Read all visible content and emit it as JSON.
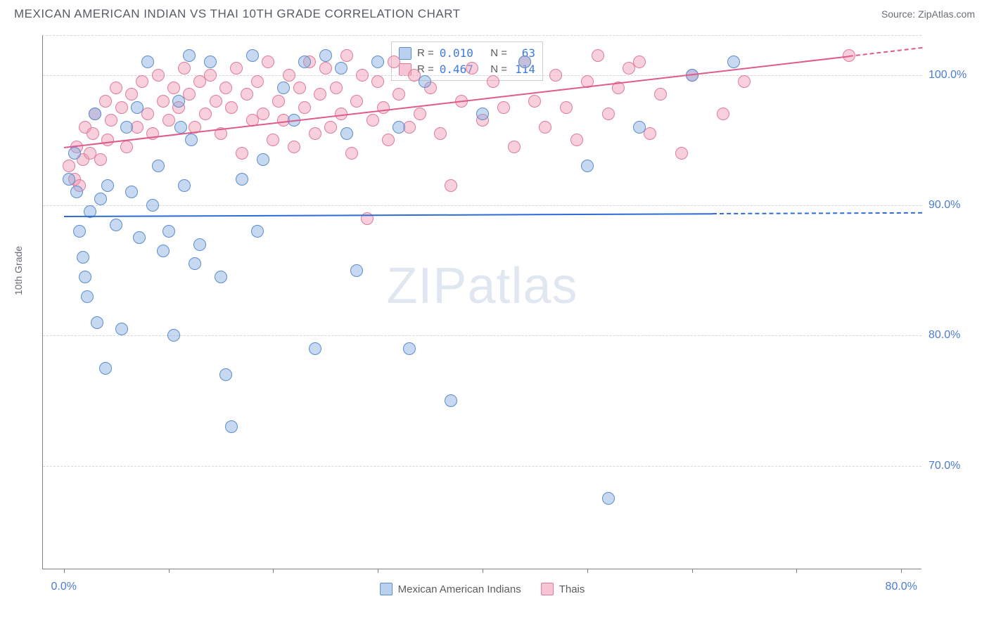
{
  "header": {
    "title": "MEXICAN AMERICAN INDIAN VS THAI 10TH GRADE CORRELATION CHART",
    "source": "Source: ZipAtlas.com"
  },
  "axes": {
    "ylabel": "10th Grade",
    "y_ticks": [
      70.0,
      80.0,
      90.0,
      100.0
    ],
    "y_tick_labels": [
      "70.0%",
      "80.0%",
      "90.0%",
      "100.0%"
    ],
    "ylim": [
      62.0,
      103.0
    ],
    "x_ticks": [
      0,
      10,
      20,
      30,
      40,
      50,
      60,
      70,
      80
    ],
    "x_tick_labels": {
      "0": "0.0%",
      "80": "80.0%"
    },
    "xlim": [
      -2,
      82
    ]
  },
  "series": {
    "blue": {
      "name": "Mexican American Indians",
      "color_fill": "rgba(130,170,225,0.45)",
      "color_stroke": "#5a8cd0",
      "r_value": "0.010",
      "n_value": "63",
      "trend": {
        "x1": 0,
        "y1": 89.2,
        "x2": 62,
        "y2": 89.4,
        "extend_to": 82,
        "color": "#2e6bd6"
      },
      "points": [
        [
          0.5,
          92.0
        ],
        [
          1.0,
          94.0
        ],
        [
          1.2,
          91.0
        ],
        [
          1.5,
          88.0
        ],
        [
          1.8,
          86.0
        ],
        [
          2.0,
          84.5
        ],
        [
          2.2,
          83.0
        ],
        [
          2.5,
          89.5
        ],
        [
          3.0,
          97.0
        ],
        [
          3.2,
          81.0
        ],
        [
          3.5,
          90.5
        ],
        [
          4.0,
          77.5
        ],
        [
          4.2,
          91.5
        ],
        [
          5.0,
          88.5
        ],
        [
          5.5,
          80.5
        ],
        [
          6.0,
          96.0
        ],
        [
          6.5,
          91.0
        ],
        [
          7.0,
          97.5
        ],
        [
          7.2,
          87.5
        ],
        [
          8.0,
          101.0
        ],
        [
          8.5,
          90.0
        ],
        [
          9.0,
          93.0
        ],
        [
          9.5,
          86.5
        ],
        [
          10.0,
          88.0
        ],
        [
          10.5,
          80.0
        ],
        [
          11.0,
          98.0
        ],
        [
          11.2,
          96.0
        ],
        [
          11.5,
          91.5
        ],
        [
          12.0,
          101.5
        ],
        [
          12.2,
          95.0
        ],
        [
          12.5,
          85.5
        ],
        [
          13.0,
          87.0
        ],
        [
          14.0,
          101.0
        ],
        [
          15.0,
          84.5
        ],
        [
          15.5,
          77.0
        ],
        [
          16.0,
          73.0
        ],
        [
          17.0,
          92.0
        ],
        [
          18.0,
          101.5
        ],
        [
          18.5,
          88.0
        ],
        [
          19.0,
          93.5
        ],
        [
          21.0,
          99.0
        ],
        [
          22.0,
          96.5
        ],
        [
          23.0,
          101.0
        ],
        [
          24.0,
          79.0
        ],
        [
          25.0,
          101.5
        ],
        [
          26.5,
          100.5
        ],
        [
          27.0,
          95.5
        ],
        [
          28.0,
          85.0
        ],
        [
          30.0,
          101.0
        ],
        [
          32.0,
          96.0
        ],
        [
          33.0,
          79.0
        ],
        [
          34.5,
          99.5
        ],
        [
          37.0,
          75.0
        ],
        [
          40.0,
          97.0
        ],
        [
          44.0,
          101.0
        ],
        [
          50.0,
          93.0
        ],
        [
          52.0,
          67.5
        ],
        [
          55.0,
          96.0
        ],
        [
          60.0,
          100.0
        ],
        [
          64.0,
          101.0
        ]
      ]
    },
    "pink": {
      "name": "Thais",
      "color_fill": "rgba(240,150,175,0.45)",
      "color_stroke": "#e07a9c",
      "r_value": "0.467",
      "n_value": "114",
      "trend": {
        "x1": 0,
        "y1": 94.5,
        "x2": 75,
        "y2": 101.5,
        "extend_to": 82,
        "color": "#e05a8c"
      },
      "points": [
        [
          0.5,
          93.0
        ],
        [
          1.0,
          92.0
        ],
        [
          1.2,
          94.5
        ],
        [
          1.5,
          91.5
        ],
        [
          1.8,
          93.5
        ],
        [
          2.0,
          96.0
        ],
        [
          2.5,
          94.0
        ],
        [
          2.8,
          95.5
        ],
        [
          3.0,
          97.0
        ],
        [
          3.5,
          93.5
        ],
        [
          4.0,
          98.0
        ],
        [
          4.2,
          95.0
        ],
        [
          4.5,
          96.5
        ],
        [
          5.0,
          99.0
        ],
        [
          5.5,
          97.5
        ],
        [
          6.0,
          94.5
        ],
        [
          6.5,
          98.5
        ],
        [
          7.0,
          96.0
        ],
        [
          7.5,
          99.5
        ],
        [
          8.0,
          97.0
        ],
        [
          8.5,
          95.5
        ],
        [
          9.0,
          100.0
        ],
        [
          9.5,
          98.0
        ],
        [
          10.0,
          96.5
        ],
        [
          10.5,
          99.0
        ],
        [
          11.0,
          97.5
        ],
        [
          11.5,
          100.5
        ],
        [
          12.0,
          98.5
        ],
        [
          12.5,
          96.0
        ],
        [
          13.0,
          99.5
        ],
        [
          13.5,
          97.0
        ],
        [
          14.0,
          100.0
        ],
        [
          14.5,
          98.0
        ],
        [
          15.0,
          95.5
        ],
        [
          15.5,
          99.0
        ],
        [
          16.0,
          97.5
        ],
        [
          16.5,
          100.5
        ],
        [
          17.0,
          94.0
        ],
        [
          17.5,
          98.5
        ],
        [
          18.0,
          96.5
        ],
        [
          18.5,
          99.5
        ],
        [
          19.0,
          97.0
        ],
        [
          19.5,
          101.0
        ],
        [
          20.0,
          95.0
        ],
        [
          20.5,
          98.0
        ],
        [
          21.0,
          96.5
        ],
        [
          21.5,
          100.0
        ],
        [
          22.0,
          94.5
        ],
        [
          22.5,
          99.0
        ],
        [
          23.0,
          97.5
        ],
        [
          23.5,
          101.0
        ],
        [
          24.0,
          95.5
        ],
        [
          24.5,
          98.5
        ],
        [
          25.0,
          100.5
        ],
        [
          25.5,
          96.0
        ],
        [
          26.0,
          99.0
        ],
        [
          26.5,
          97.0
        ],
        [
          27.0,
          101.5
        ],
        [
          27.5,
          94.0
        ],
        [
          28.0,
          98.0
        ],
        [
          28.5,
          100.0
        ],
        [
          29.0,
          89.0
        ],
        [
          29.5,
          96.5
        ],
        [
          30.0,
          99.5
        ],
        [
          30.5,
          97.5
        ],
        [
          31.0,
          95.0
        ],
        [
          31.5,
          101.0
        ],
        [
          32.0,
          98.5
        ],
        [
          33.0,
          96.0
        ],
        [
          33.5,
          100.0
        ],
        [
          34.0,
          97.0
        ],
        [
          35.0,
          99.0
        ],
        [
          36.0,
          95.5
        ],
        [
          37.0,
          91.5
        ],
        [
          38.0,
          98.0
        ],
        [
          39.0,
          100.5
        ],
        [
          40.0,
          96.5
        ],
        [
          41.0,
          99.5
        ],
        [
          42.0,
          97.5
        ],
        [
          43.0,
          94.5
        ],
        [
          44.0,
          101.0
        ],
        [
          45.0,
          98.0
        ],
        [
          46.0,
          96.0
        ],
        [
          47.0,
          100.0
        ],
        [
          48.0,
          97.5
        ],
        [
          49.0,
          95.0
        ],
        [
          50.0,
          99.5
        ],
        [
          51.0,
          101.5
        ],
        [
          52.0,
          97.0
        ],
        [
          53.0,
          99.0
        ],
        [
          54.0,
          100.5
        ],
        [
          55.0,
          101.0
        ],
        [
          56.0,
          95.5
        ],
        [
          57.0,
          98.5
        ],
        [
          59.0,
          94.0
        ],
        [
          60.0,
          100.0
        ],
        [
          63.0,
          97.0
        ],
        [
          65.0,
          99.5
        ],
        [
          75.0,
          101.5
        ]
      ]
    }
  },
  "legend_top": {
    "r_label": "R =",
    "n_label": "N ="
  },
  "watermark": {
    "prefix": "ZIP",
    "suffix": "atlas"
  }
}
